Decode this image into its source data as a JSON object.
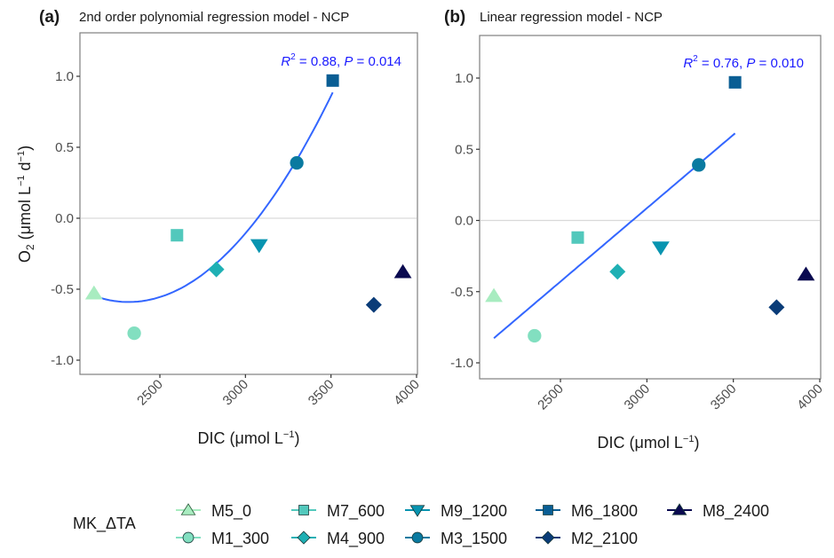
{
  "chart_data": [
    {
      "type": "scatter",
      "panel_tag": "(a)",
      "title": "2nd order polynomial regression model - NCP",
      "xlabel": "DIC (μmol L⁻¹)",
      "ylabel": "O₂ (μmol L⁻¹ d⁻¹)",
      "xlim": [
        2000,
        4000
      ],
      "ylim": [
        -1.1,
        1.3
      ],
      "xticks": [
        2500,
        3000,
        3500,
        4000
      ],
      "xtick_labels": [
        "2500",
        "3000",
        "3500",
        "4000"
      ],
      "yticks": [
        1.0,
        0.5,
        0.0,
        -0.5,
        -1.0
      ],
      "ytick_labels": [
        "1.0",
        "0.5",
        "0.0",
        "-0.5",
        "-1.0"
      ],
      "hline": 0,
      "fit": {
        "model": "quadratic",
        "x_range": [
          2115,
          3510
        ],
        "color": "#3366ff"
      },
      "annotation": {
        "r2_label": "R",
        "r2_sup": "2",
        "text_mid": " = 0.88, ",
        "p_label": "P",
        "text_end": " = 0.014"
      },
      "grid": false
    },
    {
      "type": "scatter",
      "panel_tag": "(b)",
      "title": "Linear regression model - NCP",
      "xlabel": "DIC (μmol L⁻¹)",
      "ylabel": "",
      "xlim": [
        2000,
        4000
      ],
      "ylim": [
        -1.1,
        1.3
      ],
      "xticks": [
        2500,
        3000,
        3500,
        4000
      ],
      "xtick_labels": [
        "2500",
        "3000",
        "3500",
        "4000"
      ],
      "yticks": [
        1.0,
        0.5,
        0.0,
        -0.5,
        -1.0
      ],
      "ytick_labels": [
        "1.0",
        "0.5",
        "0.0",
        "-0.5",
        "-1.0"
      ],
      "hline": 0,
      "fit": {
        "model": "linear",
        "x_range": [
          2115,
          3510
        ],
        "color": "#3366ff"
      },
      "annotation": {
        "r2_label": "R",
        "r2_sup": "2",
        "text_mid": " = 0.76, ",
        "p_label": "P",
        "text_end": " = 0.010"
      },
      "grid": false
    }
  ],
  "series": [
    {
      "name": "M5_0",
      "shape": "triangle-up",
      "color": "#a8ecc0",
      "x": 2115,
      "y": -0.53
    },
    {
      "name": "M1_300",
      "shape": "circle",
      "color": "#82dfc0",
      "x": 2350,
      "y": -0.81
    },
    {
      "name": "M7_600",
      "shape": "square",
      "color": "#52c8bc",
      "x": 2600,
      "y": -0.12
    },
    {
      "name": "M4_900",
      "shape": "diamond",
      "color": "#1fb0b4",
      "x": 2830,
      "y": -0.36
    },
    {
      "name": "M9_1200",
      "shape": "triangle-down",
      "color": "#0894b0",
      "x": 3080,
      "y": -0.19
    },
    {
      "name": "M3_1500",
      "shape": "circle",
      "color": "#0a7aa0",
      "x": 3300,
      "y": 0.39
    },
    {
      "name": "M6_1800",
      "shape": "square",
      "color": "#0a5e94",
      "x": 3510,
      "y": 0.97
    },
    {
      "name": "M2_2100",
      "shape": "diamond",
      "color": "#0a3c78",
      "x": 3750,
      "y": -0.61
    },
    {
      "name": "M8_2400",
      "shape": "triangle-up",
      "color": "#0a0a50",
      "x": 3920,
      "y": -0.38
    }
  ],
  "legend": {
    "title": "MK_ΔTA",
    "placement": "bottom",
    "rows": 2
  }
}
